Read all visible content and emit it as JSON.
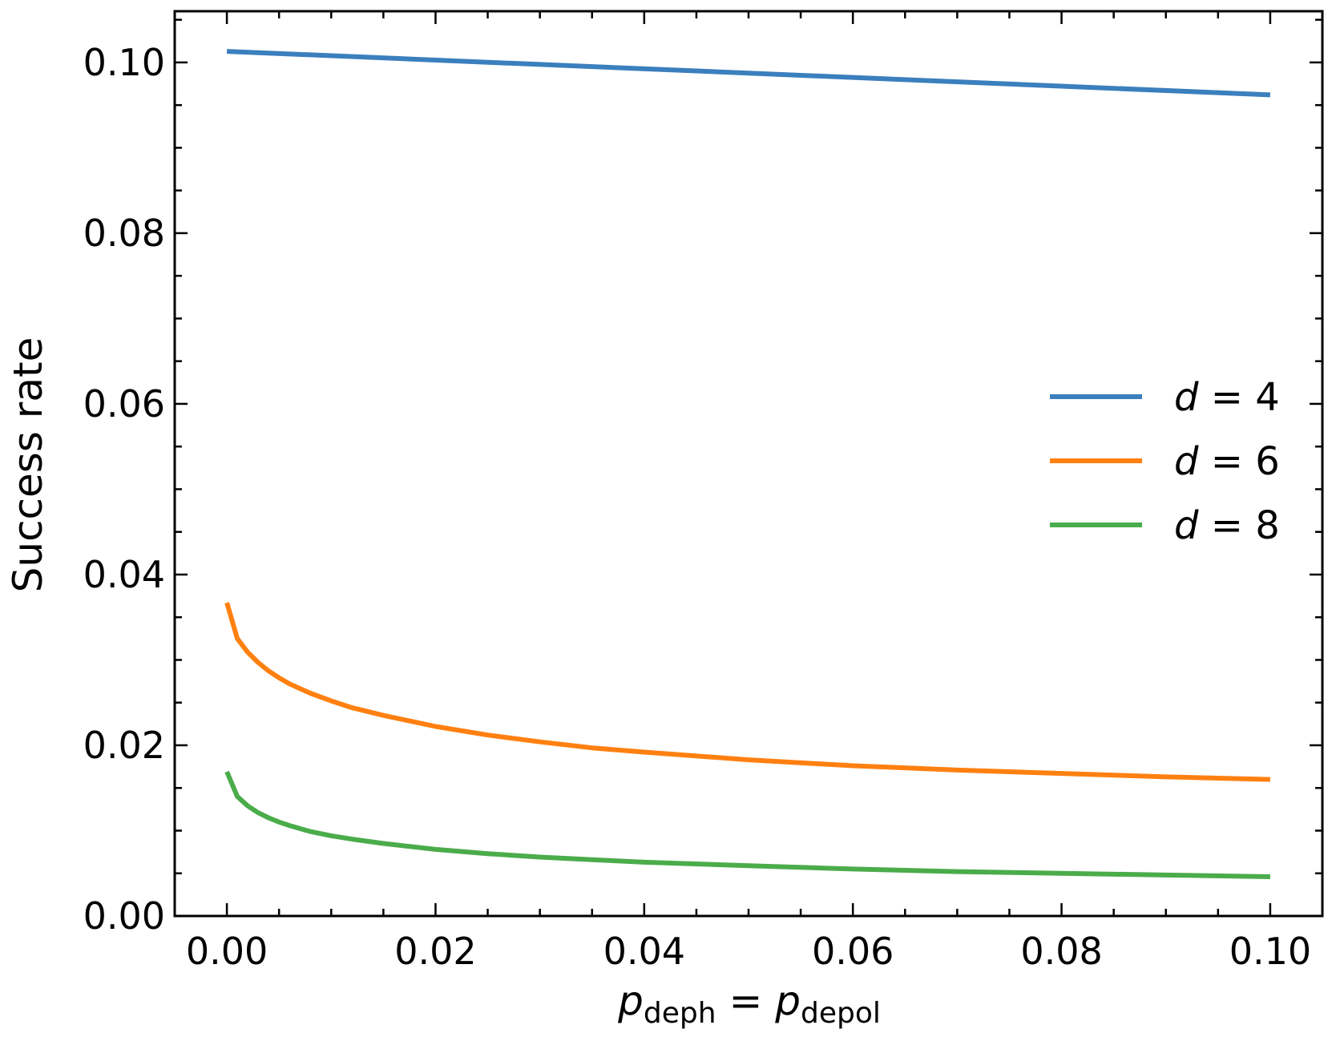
{
  "chart_data": {
    "type": "line",
    "xlabel": {
      "main": "p",
      "sub1": "deph",
      "eq": " = ",
      "main2": "p",
      "sub2": "depol"
    },
    "ylabel": "Success rate",
    "xlim": [
      -0.005,
      0.105
    ],
    "ylim": [
      0.0,
      0.106
    ],
    "xticks": [
      "0.00",
      "0.02",
      "0.04",
      "0.06",
      "0.08",
      "0.10"
    ],
    "xtick_values": [
      0.0,
      0.02,
      0.04,
      0.06,
      0.08,
      0.1
    ],
    "yticks": [
      "0.00",
      "0.02",
      "0.04",
      "0.06",
      "0.08",
      "0.10"
    ],
    "ytick_values": [
      0.0,
      0.02,
      0.04,
      0.06,
      0.08,
      0.1
    ],
    "legend_position": "center-right",
    "grid": false,
    "series": [
      {
        "name": "d = 4",
        "name_var": "d",
        "name_rest": " = 4",
        "color": "#3b7fbd",
        "x": [
          0.0,
          0.1
        ],
        "y": [
          0.1013,
          0.0962
        ]
      },
      {
        "name": "d = 6",
        "name_var": "d",
        "name_rest": " = 6",
        "color": "#ff8010",
        "x": [
          0.0,
          0.001,
          0.002,
          0.003,
          0.004,
          0.005,
          0.006,
          0.008,
          0.01,
          0.012,
          0.015,
          0.02,
          0.025,
          0.03,
          0.035,
          0.04,
          0.05,
          0.06,
          0.07,
          0.08,
          0.09,
          0.1
        ],
        "y": [
          0.0367,
          0.0325,
          0.0309,
          0.0297,
          0.0287,
          0.0279,
          0.0272,
          0.0261,
          0.0252,
          0.0244,
          0.0235,
          0.0222,
          0.0212,
          0.0204,
          0.0197,
          0.0192,
          0.0183,
          0.0176,
          0.0171,
          0.0167,
          0.0163,
          0.016
        ]
      },
      {
        "name": "d = 8",
        "name_var": "d",
        "name_rest": " = 8",
        "color": "#4aac4a",
        "x": [
          0.0,
          0.001,
          0.002,
          0.003,
          0.004,
          0.005,
          0.006,
          0.008,
          0.01,
          0.012,
          0.015,
          0.02,
          0.025,
          0.03,
          0.035,
          0.04,
          0.05,
          0.06,
          0.07,
          0.08,
          0.09,
          0.1
        ],
        "y": [
          0.0169,
          0.014,
          0.0129,
          0.0121,
          0.0115,
          0.011,
          0.0106,
          0.0099,
          0.0094,
          0.009,
          0.0085,
          0.0078,
          0.0073,
          0.0069,
          0.0066,
          0.0063,
          0.0059,
          0.0055,
          0.0052,
          0.005,
          0.0048,
          0.0046
        ]
      }
    ]
  }
}
